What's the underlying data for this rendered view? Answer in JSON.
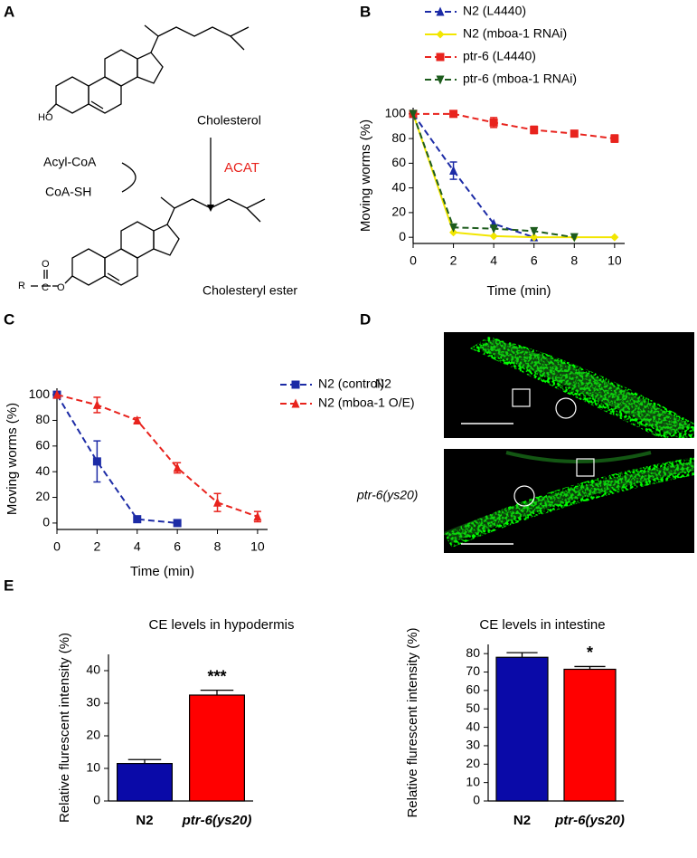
{
  "panel_labels": [
    "A",
    "B",
    "C",
    "D",
    "E"
  ],
  "diagram": {
    "reactant": "Cholesterol",
    "product": "Cholesteryl ester",
    "enzyme": "ACAT",
    "cosubstrate": "Acyl-CoA",
    "coproduct": "CoA-SH",
    "atoms": [
      "HO",
      "R",
      "C",
      "O",
      "O"
    ]
  },
  "images": {
    "labels": [
      "N2",
      "ptr-6(ys20)"
    ]
  },
  "chart_data": [
    {
      "type": "line",
      "xlabel": "Time (min)",
      "ylabel": "Moving worms (%)",
      "x": [
        0,
        2,
        4,
        6,
        8,
        10
      ],
      "xlim": [
        0,
        10.5
      ],
      "xticks": [
        0,
        2,
        4,
        6,
        8,
        10
      ],
      "ylim": [
        -5,
        105
      ],
      "yticks": [
        0,
        20,
        40,
        60,
        80,
        100
      ],
      "series": [
        {
          "name": "N2 (L4440)",
          "color": "#1c2ba6",
          "marker": "triangle",
          "dashed": true,
          "values": [
            100,
            54,
            11,
            0,
            null,
            null
          ],
          "errors": [
            null,
            7,
            null,
            null,
            null,
            null
          ]
        },
        {
          "name": "N2 (mboa-1 RNAi)",
          "color": "#f2e600",
          "marker": "diamond",
          "dashed": false,
          "values": [
            100,
            4,
            1,
            0,
            0,
            0
          ],
          "errors": [
            null,
            null,
            null,
            null,
            null,
            null
          ]
        },
        {
          "name": "ptr-6 (L4440)",
          "color": "#e8231d",
          "marker": "square",
          "dashed": true,
          "values": [
            100,
            100,
            93,
            87,
            84,
            80
          ],
          "errors": [
            null,
            1,
            4,
            3,
            2,
            3
          ]
        },
        {
          "name": "ptr-6 (mboa-1 RNAi)",
          "color": "#1d5c1d",
          "marker": "triangle-down",
          "dashed": true,
          "values": [
            100,
            8,
            7,
            5,
            0,
            null
          ],
          "errors": [
            null,
            null,
            null,
            null,
            null,
            null
          ]
        }
      ]
    },
    {
      "type": "line",
      "xlabel": "Time (min)",
      "ylabel": "Moving worms (%)",
      "x": [
        0,
        2,
        4,
        6,
        8,
        10
      ],
      "xlim": [
        0,
        10.5
      ],
      "xticks": [
        0,
        2,
        4,
        6,
        8,
        10
      ],
      "ylim": [
        -5,
        105
      ],
      "yticks": [
        0,
        20,
        40,
        60,
        80,
        100
      ],
      "series": [
        {
          "name": "N2 (control)",
          "color": "#1c2ba6",
          "marker": "square",
          "dashed": true,
          "values": [
            100,
            48,
            3,
            0,
            null,
            null
          ],
          "errors": [
            null,
            16,
            2,
            null,
            null,
            null
          ]
        },
        {
          "name": "N2 (mboa-1 O/E)",
          "color": "#e8231d",
          "marker": "triangle",
          "dashed": true,
          "values": [
            100,
            92,
            80,
            43,
            16,
            5
          ],
          "errors": [
            null,
            6,
            2,
            4,
            7,
            4
          ]
        }
      ]
    },
    {
      "type": "bar",
      "title": "CE levels in hypodermis",
      "ylabel": "Relative flurescent intensity (%)",
      "categories": [
        "N2",
        "ptr-6(ys20)"
      ],
      "values": [
        11.5,
        32.5
      ],
      "errors": [
        1.2,
        1.5
      ],
      "colors": [
        "#0a0aa8",
        "#ff0000"
      ],
      "significance_labels": [
        null,
        "***"
      ],
      "ylim": [
        0,
        45
      ],
      "yticks": [
        0,
        10,
        20,
        30,
        40
      ]
    },
    {
      "type": "bar",
      "title": "CE levels in intestine",
      "ylabel": "Relative flurescent intensity (%)",
      "categories": [
        "N2",
        "ptr-6(ys20)"
      ],
      "values": [
        78,
        71.5
      ],
      "errors": [
        2.5,
        1.5
      ],
      "colors": [
        "#0a0aa8",
        "#ff0000"
      ],
      "significance_labels": [
        null,
        "*"
      ],
      "ylim": [
        0,
        85
      ],
      "yticks": [
        0,
        10,
        20,
        30,
        40,
        50,
        60,
        70,
        80
      ]
    }
  ]
}
